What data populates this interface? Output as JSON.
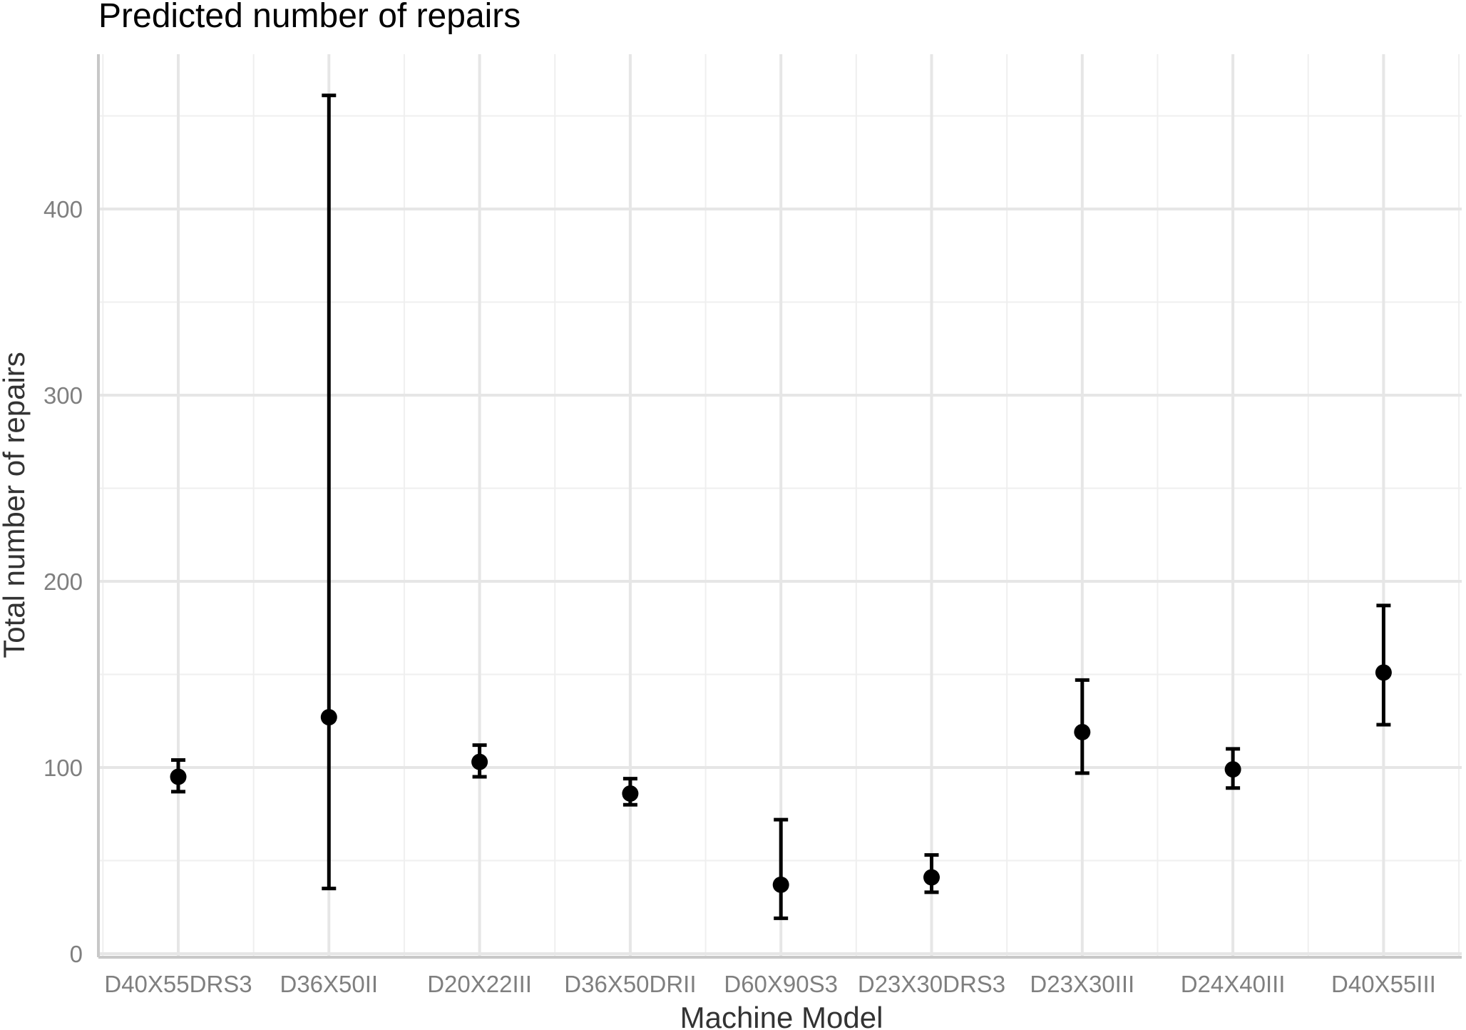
{
  "chart_data": {
    "type": "scatter",
    "title": "Predicted number of repairs",
    "xlabel": "Machine Model",
    "ylabel": "Total number of repairs",
    "categories": [
      "D40X55DRS3",
      "D36X50II",
      "D20X22III",
      "D36X50DRII",
      "D60X90S3",
      "D23X30DRS3",
      "D23X30III",
      "D24X40III",
      "D40X55III"
    ],
    "series": [
      {
        "values": [
          95,
          127,
          103,
          86,
          37,
          41,
          119,
          99,
          151
        ],
        "lower": [
          87,
          35,
          95,
          80,
          19,
          33,
          97,
          89,
          123
        ],
        "upper": [
          104,
          461,
          112,
          94,
          72,
          53,
          147,
          110,
          187
        ]
      }
    ],
    "y_ticks": [
      0,
      100,
      200,
      300,
      400
    ],
    "ylim": [
      0,
      466
    ],
    "grid": true,
    "error_bars": true,
    "colors": {
      "marks": "#000000",
      "grid": "#e6e6e6",
      "tick_text": "#7f7f7f",
      "axis_title": "#333333"
    }
  }
}
